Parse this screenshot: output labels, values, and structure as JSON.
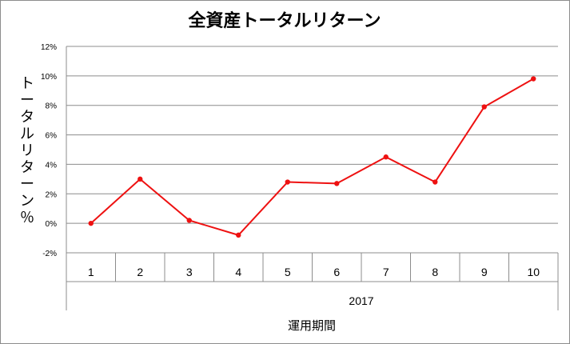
{
  "chart_data": {
    "type": "line",
    "title": "全資産トータルリターン",
    "ylabel": "トータルリターン％",
    "xlabel": "運用期間",
    "group_label": "2017",
    "categories": [
      "1",
      "2",
      "3",
      "4",
      "5",
      "6",
      "7",
      "8",
      "9",
      "10"
    ],
    "series": [
      {
        "values": [
          0.0,
          3.0,
          0.2,
          -0.8,
          2.8,
          2.7,
          4.5,
          2.8,
          7.9,
          9.8
        ]
      }
    ],
    "ylim": [
      -2,
      12
    ],
    "yticks": [
      "-2%",
      "0%",
      "2%",
      "4%",
      "6%",
      "8%",
      "10%",
      "12%"
    ],
    "grid": true,
    "legend": "none",
    "series_color": "#ee1111",
    "grid_color": "#8c8c8c"
  }
}
